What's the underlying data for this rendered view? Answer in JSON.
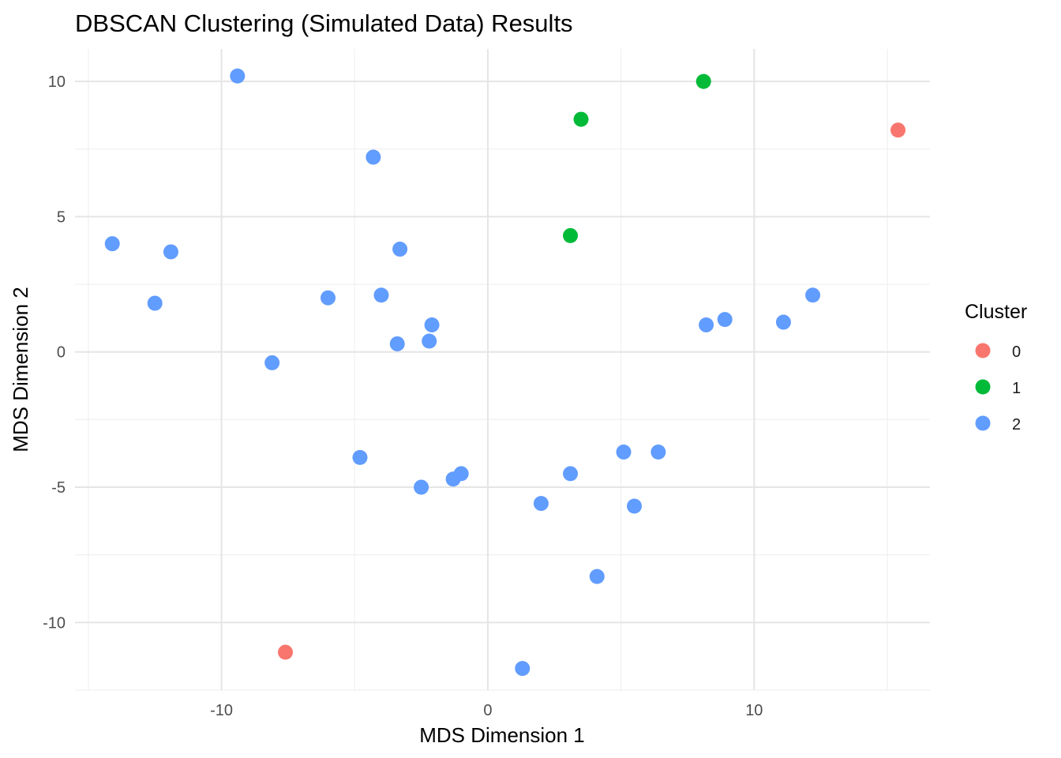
{
  "chart_data": {
    "type": "scatter",
    "title": "DBSCAN Clustering (Simulated Data) Results",
    "xlabel": "MDS Dimension 1",
    "ylabel": "MDS Dimension 2",
    "xlim": [
      -15.5,
      16.6
    ],
    "ylim": [
      -12.5,
      11.2
    ],
    "x_ticks": [
      -10,
      0,
      10
    ],
    "x_tick_labels": [
      "-10",
      "0",
      "10"
    ],
    "y_ticks": [
      -10,
      -5,
      0,
      5,
      10
    ],
    "y_tick_labels": [
      "-10",
      "-5",
      "0",
      "5",
      "10"
    ],
    "grid": true,
    "legend": {
      "title": "Cluster",
      "position": "right",
      "entries": [
        {
          "label": "0",
          "color": "#F8766D"
        },
        {
          "label": "1",
          "color": "#00BA38"
        },
        {
          "label": "2",
          "color": "#619CFF"
        }
      ]
    },
    "series": [
      {
        "name": "0",
        "color": "#F8766D",
        "points": [
          {
            "x": 15.4,
            "y": 8.2
          },
          {
            "x": -7.6,
            "y": -11.1
          }
        ]
      },
      {
        "name": "1",
        "color": "#00BA38",
        "points": [
          {
            "x": 8.1,
            "y": 10.0
          },
          {
            "x": 3.5,
            "y": 8.6
          },
          {
            "x": 3.1,
            "y": 4.3
          }
        ]
      },
      {
        "name": "2",
        "color": "#619CFF",
        "points": [
          {
            "x": -9.4,
            "y": 10.2
          },
          {
            "x": -4.3,
            "y": 7.2
          },
          {
            "x": -14.1,
            "y": 4.0
          },
          {
            "x": -11.9,
            "y": 3.7
          },
          {
            "x": -3.3,
            "y": 3.8
          },
          {
            "x": -12.5,
            "y": 1.8
          },
          {
            "x": -6.0,
            "y": 2.0
          },
          {
            "x": -4.0,
            "y": 2.1
          },
          {
            "x": -2.1,
            "y": 1.0
          },
          {
            "x": -2.2,
            "y": 0.4
          },
          {
            "x": -3.4,
            "y": 0.3
          },
          {
            "x": -8.1,
            "y": -0.4
          },
          {
            "x": 8.2,
            "y": 1.0
          },
          {
            "x": 8.9,
            "y": 1.2
          },
          {
            "x": 11.1,
            "y": 1.1
          },
          {
            "x": 12.2,
            "y": 2.1
          },
          {
            "x": -4.8,
            "y": -3.9
          },
          {
            "x": -2.5,
            "y": -5.0
          },
          {
            "x": -1.3,
            "y": -4.7
          },
          {
            "x": -1.0,
            "y": -4.5
          },
          {
            "x": 2.0,
            "y": -5.6
          },
          {
            "x": 3.1,
            "y": -4.5
          },
          {
            "x": 5.1,
            "y": -3.7
          },
          {
            "x": 6.4,
            "y": -3.7
          },
          {
            "x": 5.5,
            "y": -5.7
          },
          {
            "x": 4.1,
            "y": -8.3
          },
          {
            "x": 1.3,
            "y": -11.7
          }
        ]
      }
    ]
  }
}
